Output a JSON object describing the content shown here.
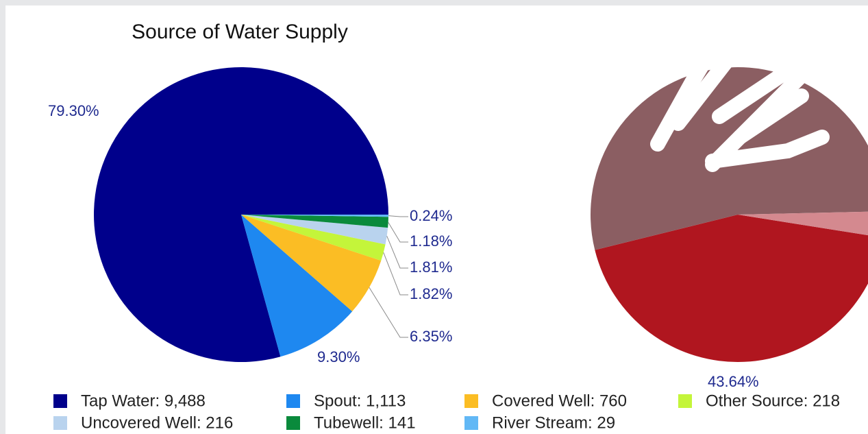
{
  "chart_data": [
    {
      "type": "pie",
      "title": "Source of Water Supply",
      "categories": [
        "Tap Water: 9,488",
        "Spout: 1,113",
        "Covered Well: 760",
        "Other Source: 218",
        "Uncovered Well: 216",
        "Tubewell: 141",
        "River Stream: 29"
      ],
      "values": [
        79.3,
        9.3,
        6.35,
        1.82,
        1.81,
        1.18,
        0.24
      ],
      "value_labels": [
        "79.30%",
        "9.30%",
        "6.35%",
        "1.82%",
        "1.81%",
        "1.18%",
        "0.24%"
      ],
      "colors": [
        "#00008b",
        "#1e88f0",
        "#fbbd24",
        "#c4f53a",
        "#b9d3ee",
        "#0a8a3c",
        "#62b8f5"
      ],
      "legend": "bottom"
    },
    {
      "type": "pie",
      "values": [
        43.64,
        53.5,
        2.86
      ],
      "value_labels": [
        "43.64%",
        null,
        null
      ],
      "colors": [
        "#b0161f",
        "#8b5e62",
        "#d4898f"
      ]
    }
  ]
}
